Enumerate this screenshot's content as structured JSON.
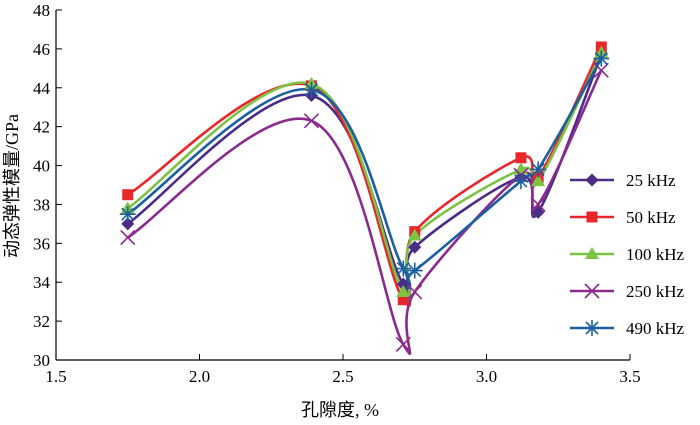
{
  "chart_data": {
    "type": "line",
    "title": "",
    "xlabel": "孔隙度, %",
    "ylabel": "动态弹性模量/GPa",
    "xlim": [
      1.5,
      3.5
    ],
    "ylim": [
      30,
      48
    ],
    "x_ticks": [
      "1.5",
      "2.0",
      "2.5",
      "3.0",
      "3.5"
    ],
    "y_ticks": [
      "30",
      "32",
      "34",
      "36",
      "38",
      "40",
      "42",
      "44",
      "46",
      "48"
    ],
    "grid": false,
    "legend_position": "right",
    "x": [
      1.75,
      2.39,
      2.71,
      2.75,
      3.12,
      3.18,
      3.4
    ],
    "series": [
      {
        "name": "25 kHz",
        "color": "#4b2c86",
        "marker": "diamond",
        "values": [
          37.0,
          43.6,
          33.9,
          35.8,
          39.4,
          37.6,
          45.7
        ]
      },
      {
        "name": "50 kHz",
        "color": "#e8262b",
        "marker": "square",
        "values": [
          38.5,
          44.1,
          33.1,
          36.6,
          40.4,
          39.4,
          46.1
        ]
      },
      {
        "name": "100 kHz",
        "color": "#7cc243",
        "marker": "triangle",
        "values": [
          37.8,
          44.2,
          33.5,
          36.4,
          39.8,
          39.2,
          45.8
        ]
      },
      {
        "name": "250 kHz",
        "color": "#8b2a8e",
        "marker": "x",
        "values": [
          36.3,
          42.3,
          30.8,
          33.5,
          39.5,
          38.0,
          44.9
        ]
      },
      {
        "name": "490 kHz",
        "color": "#1a5fa0",
        "marker": "star",
        "values": [
          37.5,
          43.9,
          34.7,
          34.6,
          39.2,
          39.8,
          45.5
        ]
      }
    ]
  }
}
